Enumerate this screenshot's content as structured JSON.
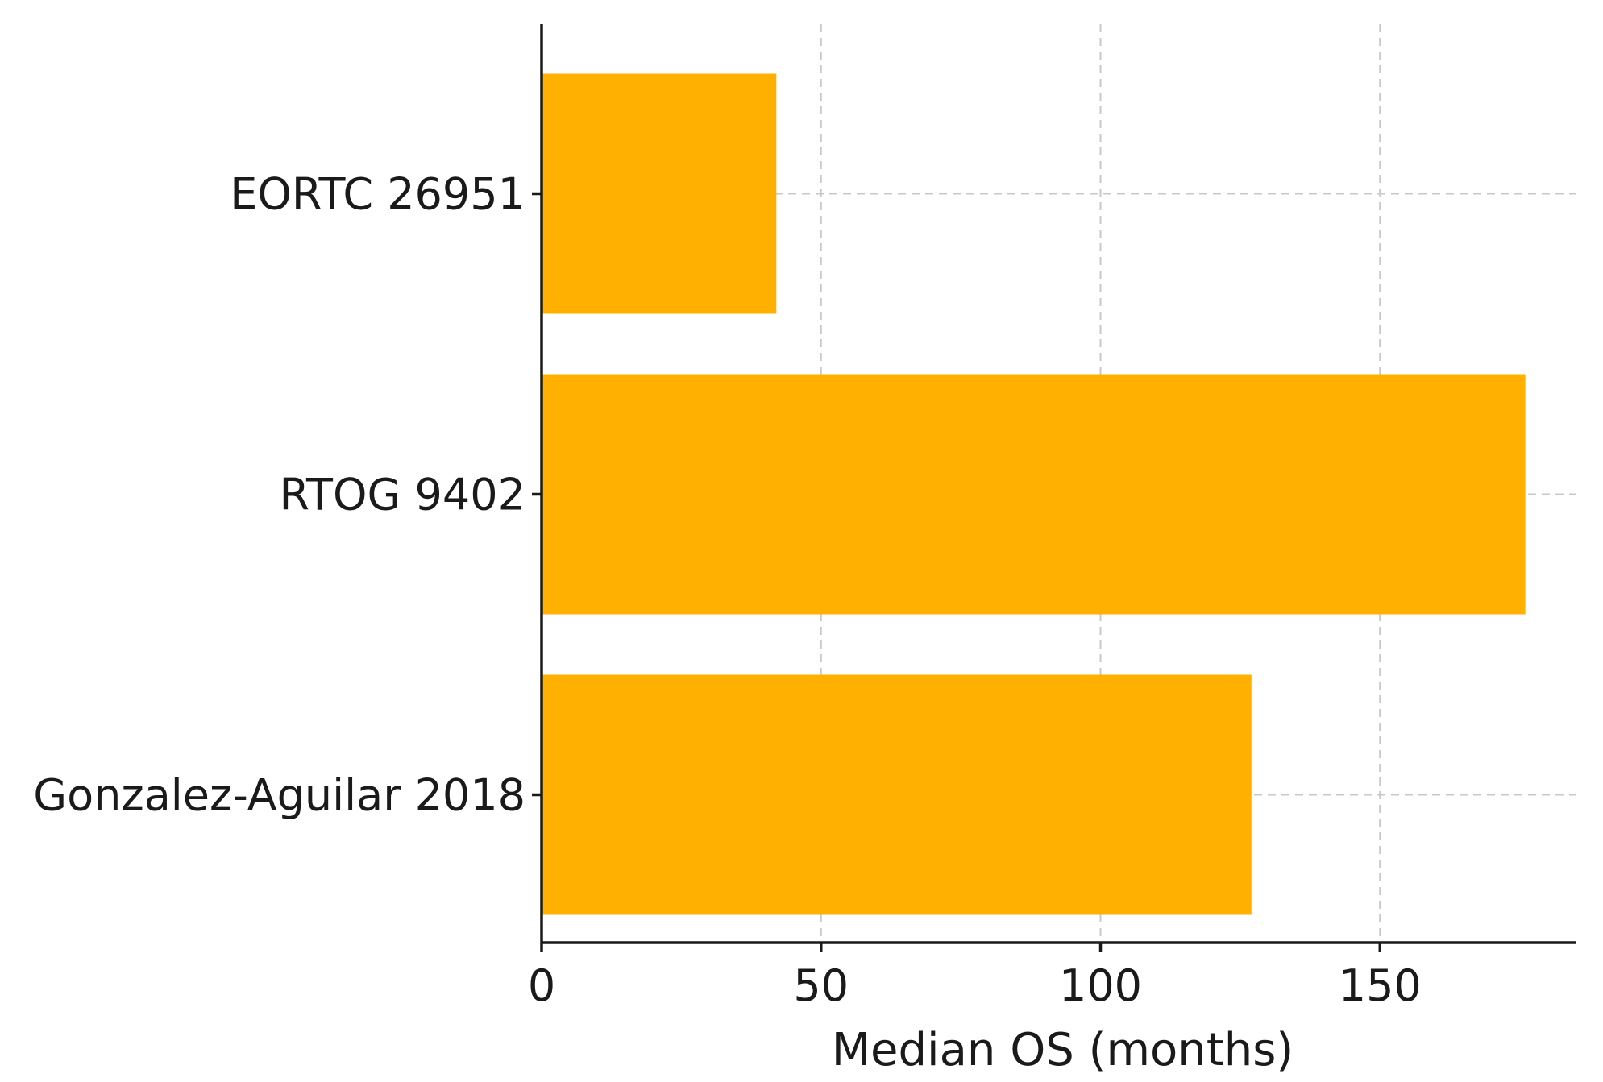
{
  "chart_data": {
    "type": "bar",
    "orientation": "horizontal",
    "categories": [
      "EORTC 26951",
      "RTOG 9402",
      "Gonzalez-Aguilar 2018"
    ],
    "values": [
      42,
      176,
      127
    ],
    "xlabel": "Median OS (months)",
    "ylabel": "",
    "xlim": [
      0,
      185
    ],
    "xticks": [
      0,
      50,
      100,
      150
    ],
    "xtick_labels": [
      "0",
      "50",
      "100",
      "150"
    ],
    "bar_color": "#FFB000",
    "grid": "dashed"
  }
}
